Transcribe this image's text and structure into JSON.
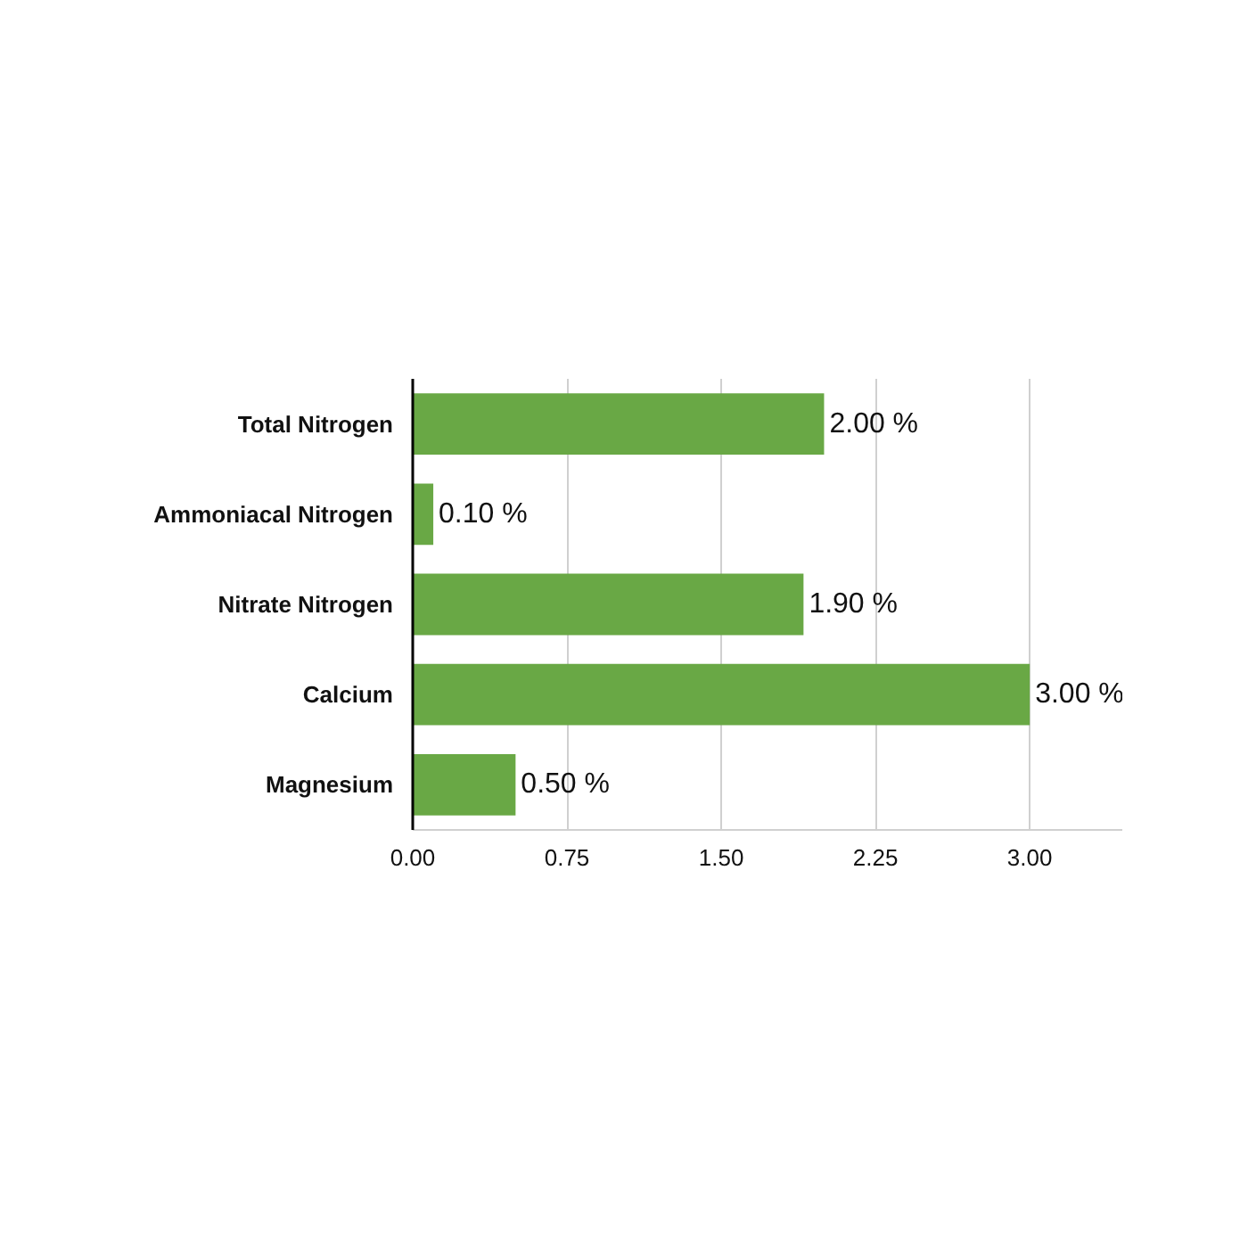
{
  "chart_data": {
    "type": "bar",
    "orientation": "horizontal",
    "categories": [
      "Total Nitrogen",
      "Ammoniacal Nitrogen",
      "Nitrate Nitrogen",
      "Calcium",
      "Magnesium"
    ],
    "values": [
      2.0,
      0.1,
      1.9,
      3.0,
      0.5
    ],
    "value_labels": [
      "2.00 %",
      "0.10 %",
      "1.90 %",
      "3.00 %",
      "0.50 %"
    ],
    "color": "#69a845",
    "xlim": [
      0,
      3.45
    ],
    "xticks": [
      {
        "value": 0,
        "label": "0.00"
      },
      {
        "value": 0.75,
        "label": "0.75"
      },
      {
        "value": 1.5,
        "label": "1.50"
      },
      {
        "value": 2.25,
        "label": "2.25"
      },
      {
        "value": 3,
        "label": "3.00"
      }
    ],
    "grid": "x"
  }
}
